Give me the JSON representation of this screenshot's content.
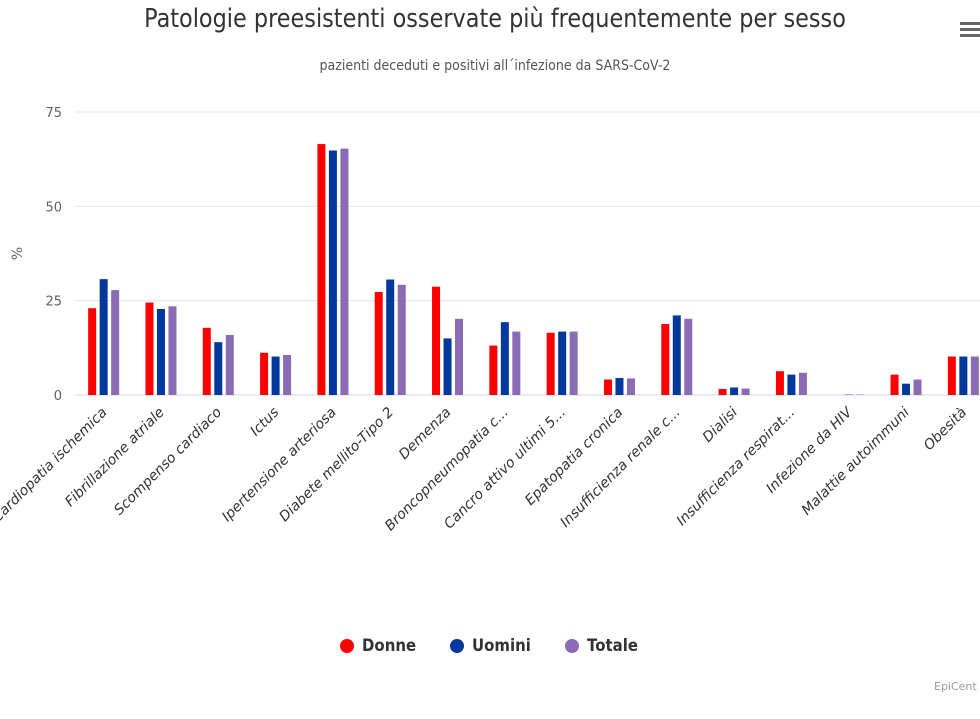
{
  "title": "Patologie preesistenti osservate più frequentemente per sesso",
  "subtitle": "pazienti deceduti e positivi all´infezione da SARS-CoV-2",
  "credits": "EpiCent",
  "icons": {
    "menu": "hamburger-menu-icon"
  },
  "chart_data": {
    "type": "bar",
    "title": "Patologie preesistenti osservate più frequentemente per sesso",
    "subtitle": "pazienti deceduti e positivi all´infezione da SARS-CoV-2",
    "ylabel": "%",
    "xlabel": "",
    "ylim": [
      0,
      75
    ],
    "yticks": [
      "0",
      "25",
      "50",
      "75"
    ],
    "grid": true,
    "legend_position": "bottom",
    "categories": [
      "Cardiopatia ischemica",
      "Fibrillazione atriale",
      "Scompenso cardiaco",
      "Ictus",
      "Ipertensione arteriosa",
      "Diabete mellito-Tipo 2",
      "Demenza",
      "Broncopneumopatia c...",
      "Cancro attivo ultimi 5...",
      "Epatopatia cronica",
      "Insufficienza renale c...",
      "Dialisi",
      "Insufficienza respirat...",
      "Infezione da HIV",
      "Malattie autoimmuni",
      "Obesità"
    ],
    "series": [
      {
        "name": "Donne",
        "color": "#ff0000",
        "values": [
          23,
          24.5,
          17.8,
          11.2,
          66.5,
          27.3,
          28.7,
          13.1,
          16.5,
          4.1,
          18.8,
          1.6,
          6.3,
          0,
          5.4,
          10.2
        ]
      },
      {
        "name": "Uomini",
        "color": "#00389c",
        "values": [
          30.7,
          22.8,
          14,
          10.2,
          64.8,
          30.6,
          15,
          19.3,
          16.8,
          4.5,
          21.1,
          2,
          5.4,
          0.1,
          3,
          10.2
        ]
      },
      {
        "name": "Totale",
        "color": "#8a6bb4",
        "values": [
          27.8,
          23.5,
          15.9,
          10.6,
          65.3,
          29.2,
          20.2,
          16.8,
          16.8,
          4.4,
          20.2,
          1.7,
          5.9,
          0.1,
          4.1,
          10.2
        ]
      }
    ]
  }
}
